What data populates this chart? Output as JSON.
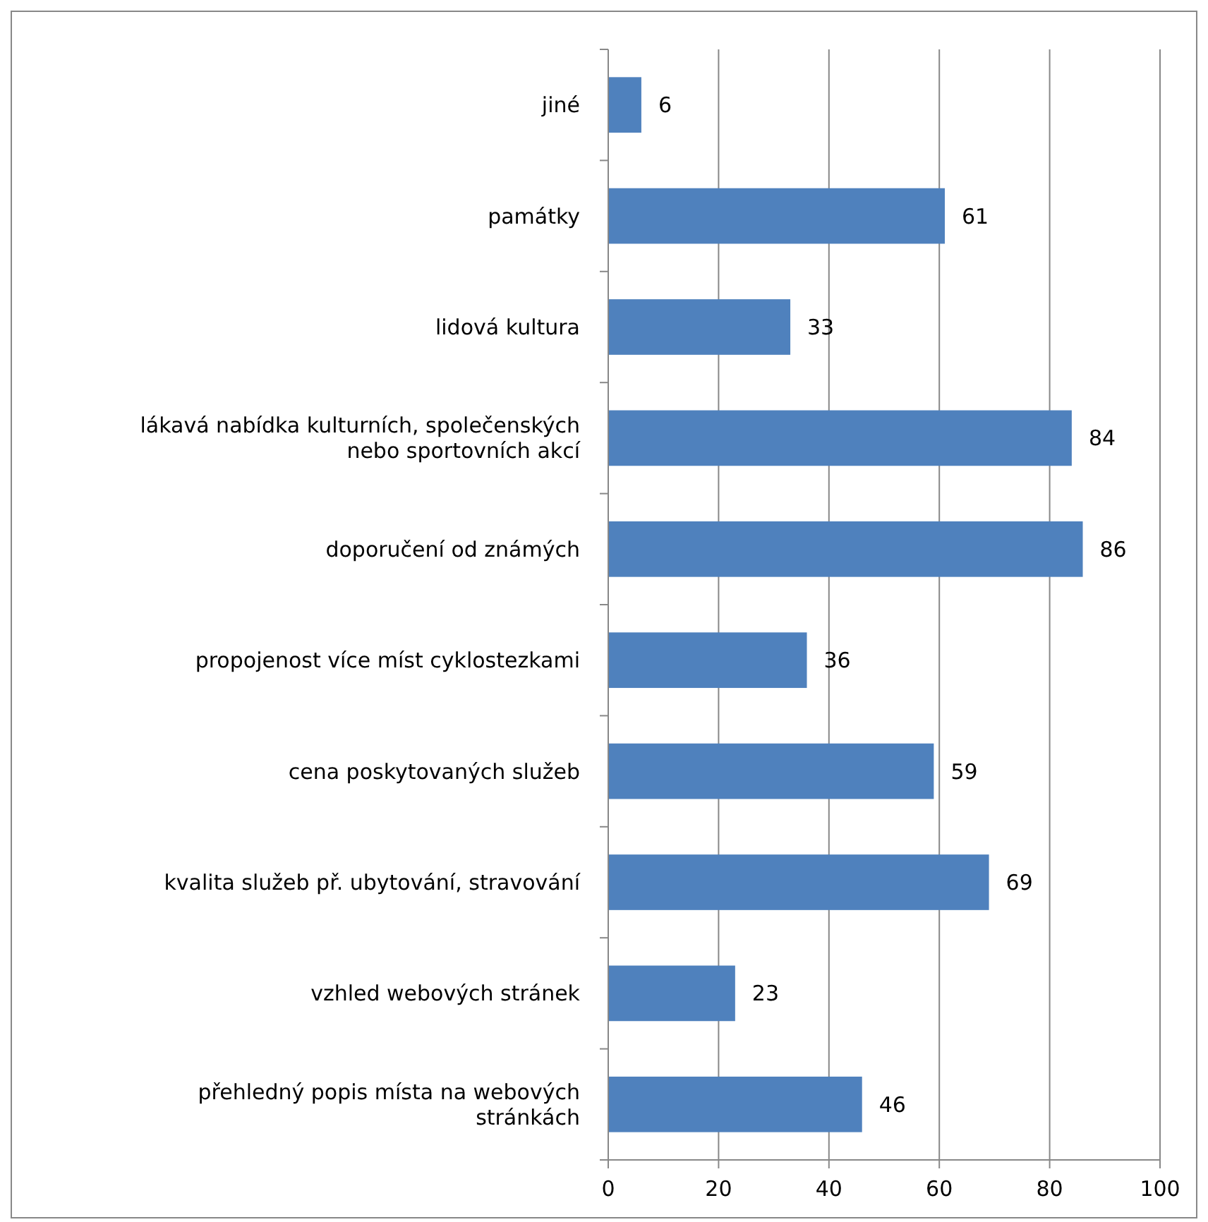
{
  "chart_data": {
    "type": "bar",
    "orientation": "horizontal",
    "categories": [
      "jiné",
      "památky",
      "lidová kultura",
      "lákavá nabídka kulturních, společenských nebo sportovních akcí",
      "doporučení od známých",
      "propojenost více míst cyklostezkami",
      "cena poskytovaných služeb",
      "kvalita služeb př. ubytování, stravování",
      "vzhled webových stránek",
      "přehledný popis místa na webových stránkách"
    ],
    "values": [
      6,
      61,
      33,
      84,
      86,
      36,
      59,
      69,
      23,
      46
    ],
    "color": "#4f81bd",
    "xlim": [
      0,
      100
    ],
    "xticks": [
      0,
      20,
      40,
      60,
      80,
      100
    ],
    "grid": "x",
    "data_labels": true
  }
}
